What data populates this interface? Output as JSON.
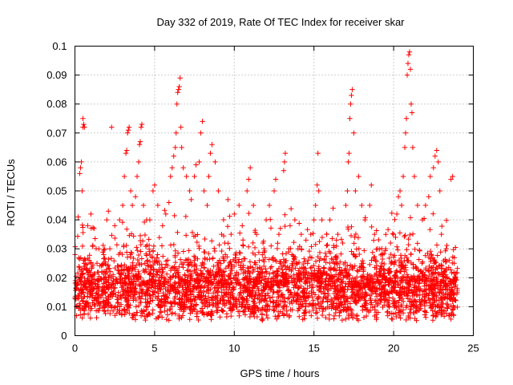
{
  "chart_data": {
    "type": "scatter",
    "title": "Day 332 of 2019, Rate Of TEC Index for receiver skar",
    "xlabel": "GPS time / hours",
    "ylabel": "ROTI / TECUs",
    "xlim": [
      0,
      25
    ],
    "ylim": [
      0,
      0.1
    ],
    "x_ticks": [
      0,
      5,
      10,
      15,
      20,
      25
    ],
    "x_tick_labels": [
      "0",
      "5",
      "10",
      "15",
      "20",
      "25"
    ],
    "y_ticks": [
      0,
      0.01,
      0.02,
      0.03,
      0.04,
      0.05,
      0.06,
      0.07,
      0.08,
      0.09,
      0.1
    ],
    "y_tick_labels": [
      "0",
      "0.01",
      "0.02",
      "0.03",
      "0.04",
      "0.05",
      "0.06",
      "0.07",
      "0.08",
      "0.09",
      "0.1"
    ],
    "grid": true,
    "marker": "+",
    "color": "#ff0000",
    "x_range": [
      0,
      24
    ],
    "baseline_roti": 0.012,
    "series": [
      {
        "name": "ROTI",
        "points": [
          [
            0.2,
            0.041
          ],
          [
            0.3,
            0.056
          ],
          [
            0.35,
            0.058
          ],
          [
            0.4,
            0.06
          ],
          [
            0.45,
            0.05
          ],
          [
            0.5,
            0.072
          ],
          [
            0.5,
            0.075
          ],
          [
            0.55,
            0.073
          ],
          [
            0.6,
            0.072
          ],
          [
            0.8,
            0.038
          ],
          [
            1.0,
            0.042
          ],
          [
            1.2,
            0.037
          ],
          [
            1.5,
            0.03
          ],
          [
            1.8,
            0.028
          ],
          [
            2.0,
            0.04
          ],
          [
            2.1,
            0.043
          ],
          [
            2.3,
            0.072
          ],
          [
            2.5,
            0.038
          ],
          [
            2.8,
            0.04
          ],
          [
            3.0,
            0.045
          ],
          [
            3.1,
            0.055
          ],
          [
            3.2,
            0.063
          ],
          [
            3.25,
            0.064
          ],
          [
            3.3,
            0.07
          ],
          [
            3.35,
            0.071
          ],
          [
            3.4,
            0.072
          ],
          [
            3.5,
            0.05
          ],
          [
            3.6,
            0.045
          ],
          [
            3.8,
            0.048
          ],
          [
            3.9,
            0.055
          ],
          [
            4.0,
            0.06
          ],
          [
            4.05,
            0.066
          ],
          [
            4.1,
            0.067
          ],
          [
            4.15,
            0.072
          ],
          [
            4.2,
            0.073
          ],
          [
            4.3,
            0.045
          ],
          [
            4.5,
            0.04
          ],
          [
            4.7,
            0.04
          ],
          [
            4.9,
            0.05
          ],
          [
            5.0,
            0.052
          ],
          [
            5.2,
            0.045
          ],
          [
            5.5,
            0.038
          ],
          [
            5.7,
            0.042
          ],
          [
            5.9,
            0.046
          ],
          [
            6.0,
            0.055
          ],
          [
            6.1,
            0.058
          ],
          [
            6.2,
            0.062
          ],
          [
            6.3,
            0.065
          ],
          [
            6.35,
            0.07
          ],
          [
            6.4,
            0.08
          ],
          [
            6.45,
            0.084
          ],
          [
            6.5,
            0.085
          ],
          [
            6.55,
            0.086
          ],
          [
            6.6,
            0.089
          ],
          [
            6.65,
            0.072
          ],
          [
            6.7,
            0.065
          ],
          [
            6.8,
            0.058
          ],
          [
            7.0,
            0.055
          ],
          [
            7.2,
            0.05
          ],
          [
            7.3,
            0.047
          ],
          [
            7.5,
            0.055
          ],
          [
            7.6,
            0.059
          ],
          [
            7.8,
            0.06
          ],
          [
            7.9,
            0.07
          ],
          [
            8.0,
            0.074
          ],
          [
            8.1,
            0.05
          ],
          [
            8.3,
            0.045
          ],
          [
            8.4,
            0.055
          ],
          [
            8.5,
            0.063
          ],
          [
            8.6,
            0.066
          ],
          [
            8.8,
            0.06
          ],
          [
            9.0,
            0.05
          ],
          [
            9.2,
            0.035
          ],
          [
            9.4,
            0.032
          ],
          [
            9.6,
            0.047
          ],
          [
            9.8,
            0.035
          ],
          [
            10.0,
            0.042
          ],
          [
            10.3,
            0.045
          ],
          [
            10.5,
            0.038
          ],
          [
            10.8,
            0.05
          ],
          [
            10.9,
            0.054
          ],
          [
            11.0,
            0.058
          ],
          [
            11.2,
            0.045
          ],
          [
            11.4,
            0.035
          ],
          [
            11.8,
            0.032
          ],
          [
            12.0,
            0.04
          ],
          [
            12.2,
            0.045
          ],
          [
            12.5,
            0.05
          ],
          [
            12.6,
            0.054
          ],
          [
            12.8,
            0.035
          ],
          [
            13.1,
            0.057
          ],
          [
            13.15,
            0.06
          ],
          [
            13.2,
            0.063
          ],
          [
            13.5,
            0.038
          ],
          [
            13.8,
            0.04
          ],
          [
            14.0,
            0.03
          ],
          [
            14.2,
            0.035
          ],
          [
            14.5,
            0.033
          ],
          [
            14.8,
            0.035
          ],
          [
            15.0,
            0.04
          ],
          [
            15.1,
            0.045
          ],
          [
            15.2,
            0.052
          ],
          [
            15.25,
            0.063
          ],
          [
            15.3,
            0.05
          ],
          [
            15.5,
            0.04
          ],
          [
            15.8,
            0.035
          ],
          [
            16.0,
            0.04
          ],
          [
            16.2,
            0.044
          ],
          [
            16.5,
            0.035
          ],
          [
            16.8,
            0.032
          ],
          [
            17.0,
            0.045
          ],
          [
            17.1,
            0.05
          ],
          [
            17.15,
            0.06
          ],
          [
            17.2,
            0.063
          ],
          [
            17.25,
            0.075
          ],
          [
            17.3,
            0.08
          ],
          [
            17.35,
            0.083
          ],
          [
            17.4,
            0.085
          ],
          [
            17.5,
            0.07
          ],
          [
            17.6,
            0.05
          ],
          [
            17.8,
            0.055
          ],
          [
            18.0,
            0.045
          ],
          [
            18.2,
            0.04
          ],
          [
            18.5,
            0.045
          ],
          [
            18.6,
            0.052
          ],
          [
            18.8,
            0.035
          ],
          [
            19.0,
            0.03
          ],
          [
            19.3,
            0.028
          ],
          [
            19.5,
            0.03
          ],
          [
            19.8,
            0.032
          ],
          [
            20.0,
            0.035
          ],
          [
            20.2,
            0.042
          ],
          [
            20.3,
            0.048
          ],
          [
            20.4,
            0.05
          ],
          [
            20.5,
            0.045
          ],
          [
            20.6,
            0.055
          ],
          [
            20.7,
            0.065
          ],
          [
            20.75,
            0.07
          ],
          [
            20.8,
            0.075
          ],
          [
            20.85,
            0.09
          ],
          [
            20.9,
            0.094
          ],
          [
            20.95,
            0.097
          ],
          [
            21.0,
            0.098
          ],
          [
            21.05,
            0.092
          ],
          [
            21.1,
            0.08
          ],
          [
            21.15,
            0.077
          ],
          [
            21.2,
            0.065
          ],
          [
            21.3,
            0.055
          ],
          [
            21.5,
            0.045
          ],
          [
            21.8,
            0.04
          ],
          [
            22.0,
            0.045
          ],
          [
            22.2,
            0.048
          ],
          [
            22.3,
            0.055
          ],
          [
            22.5,
            0.058
          ],
          [
            22.6,
            0.062
          ],
          [
            22.7,
            0.064
          ],
          [
            22.8,
            0.06
          ],
          [
            22.9,
            0.05
          ],
          [
            23.0,
            0.035
          ],
          [
            23.3,
            0.03
          ],
          [
            23.6,
            0.054
          ],
          [
            23.7,
            0.055
          ],
          [
            23.8,
            0.025
          ],
          [
            23.9,
            0.02
          ]
        ]
      }
    ]
  }
}
